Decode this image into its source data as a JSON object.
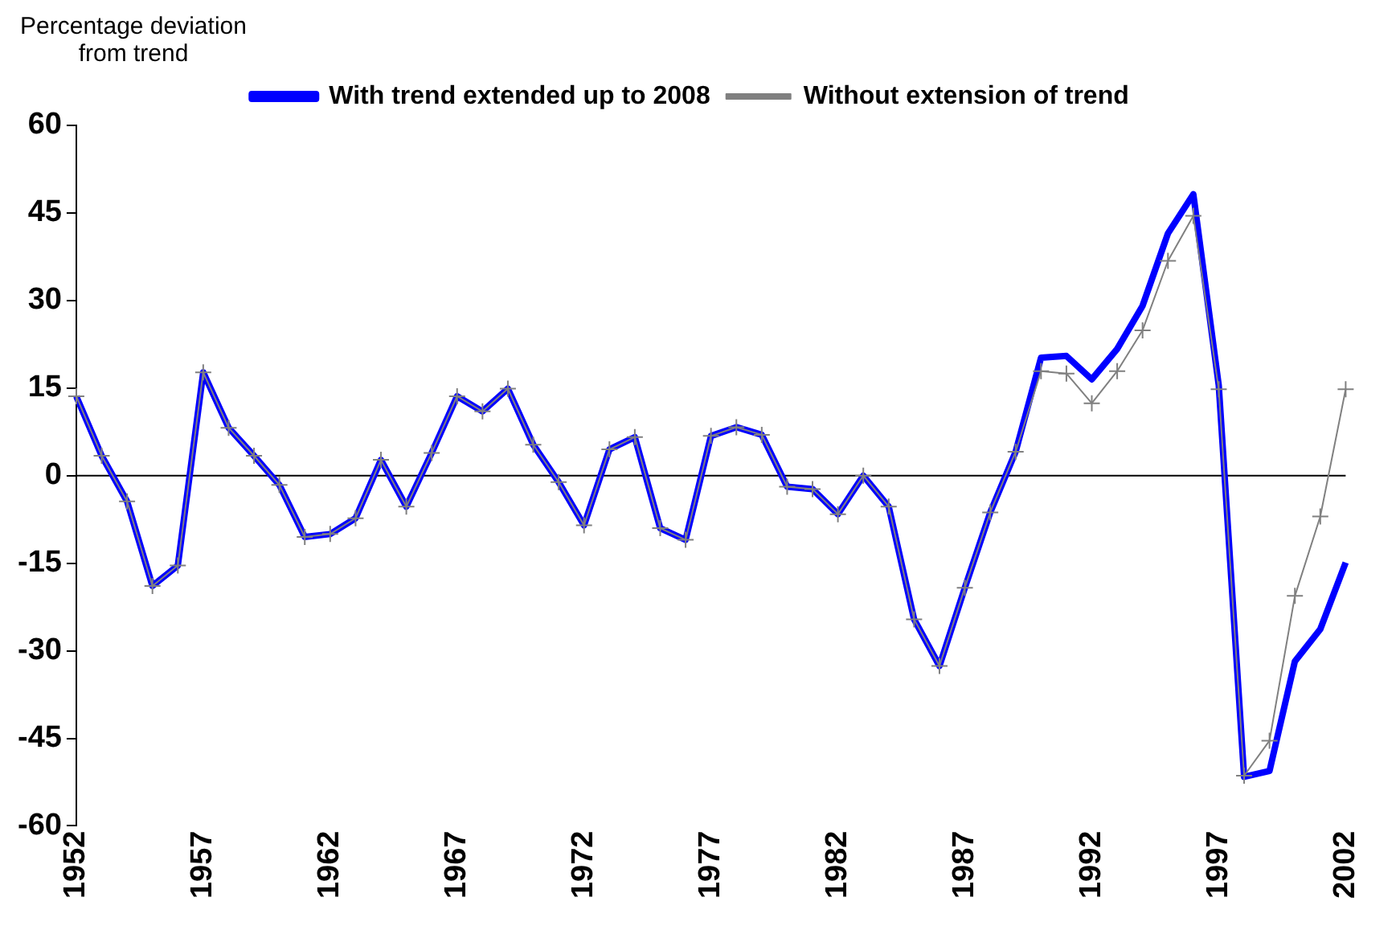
{
  "chart_data": {
    "type": "line",
    "ylabel": "Percentage deviation from trend",
    "categories": [
      "1952",
      null,
      null,
      null,
      null,
      "1957",
      null,
      null,
      null,
      null,
      "1962",
      null,
      null,
      null,
      null,
      "1967",
      null,
      null,
      null,
      null,
      "1972",
      null,
      null,
      null,
      null,
      "1977",
      null,
      null,
      null,
      null,
      "1982",
      null,
      null,
      null,
      null,
      "1987",
      null,
      null,
      null,
      null,
      "1992",
      null,
      null,
      null,
      null,
      "1997",
      null,
      null,
      null,
      null,
      "2002"
    ],
    "series": [
      {
        "name": "With trend extended up to 2008",
        "color": "#0000ff",
        "marker": "none",
        "values": [
          13.6,
          3.4,
          -4.4,
          -18.9,
          -15.4,
          17.7,
          8.2,
          3.4,
          -1.6,
          -10.5,
          -10,
          -7.3,
          2.7,
          -5.3,
          3.9,
          13.6,
          11,
          14.9,
          5.3,
          -1.1,
          -8.5,
          4.5,
          6.6,
          -9,
          -11,
          6.8,
          8.3,
          7,
          -1.9,
          -2.3,
          -6.6,
          0,
          -5.3,
          -24.6,
          -32.6,
          -19.2,
          -6.3,
          4.1,
          20.2,
          20.5,
          16.5,
          21.7,
          29.1,
          41.5,
          48.2,
          15.5,
          -51.6,
          -50.6,
          -31.8,
          -26.3,
          -14.9
        ]
      },
      {
        "name": "Without extension of trend",
        "color": "#808080",
        "marker": "cross",
        "values": [
          13.6,
          3.4,
          -4.4,
          -18.9,
          -15.4,
          17.7,
          8.2,
          3.4,
          -1.6,
          -10.5,
          -10,
          -7.3,
          2.7,
          -5.3,
          3.9,
          13.6,
          11,
          14.9,
          5.3,
          -1.1,
          -8.5,
          4.5,
          6.6,
          -9,
          -11,
          6.8,
          8.3,
          7,
          -1.9,
          -2.3,
          -6.6,
          0,
          -5.3,
          -24.6,
          -32.6,
          -19.2,
          -6.3,
          4.1,
          17.9,
          17.5,
          12.4,
          17.9,
          24.9,
          36.8,
          44.5,
          14.8,
          -51.4,
          -45.4,
          -20.6,
          -7,
          14.8
        ]
      }
    ],
    "ylim": [
      -60,
      60
    ],
    "yticks": [
      -60,
      -45,
      -30,
      -15,
      0,
      15,
      30,
      45,
      60
    ],
    "ref_lines": [
      {
        "axis": "y",
        "value": 0,
        "color": "#000000"
      }
    ],
    "grid": false,
    "legend": "top"
  }
}
